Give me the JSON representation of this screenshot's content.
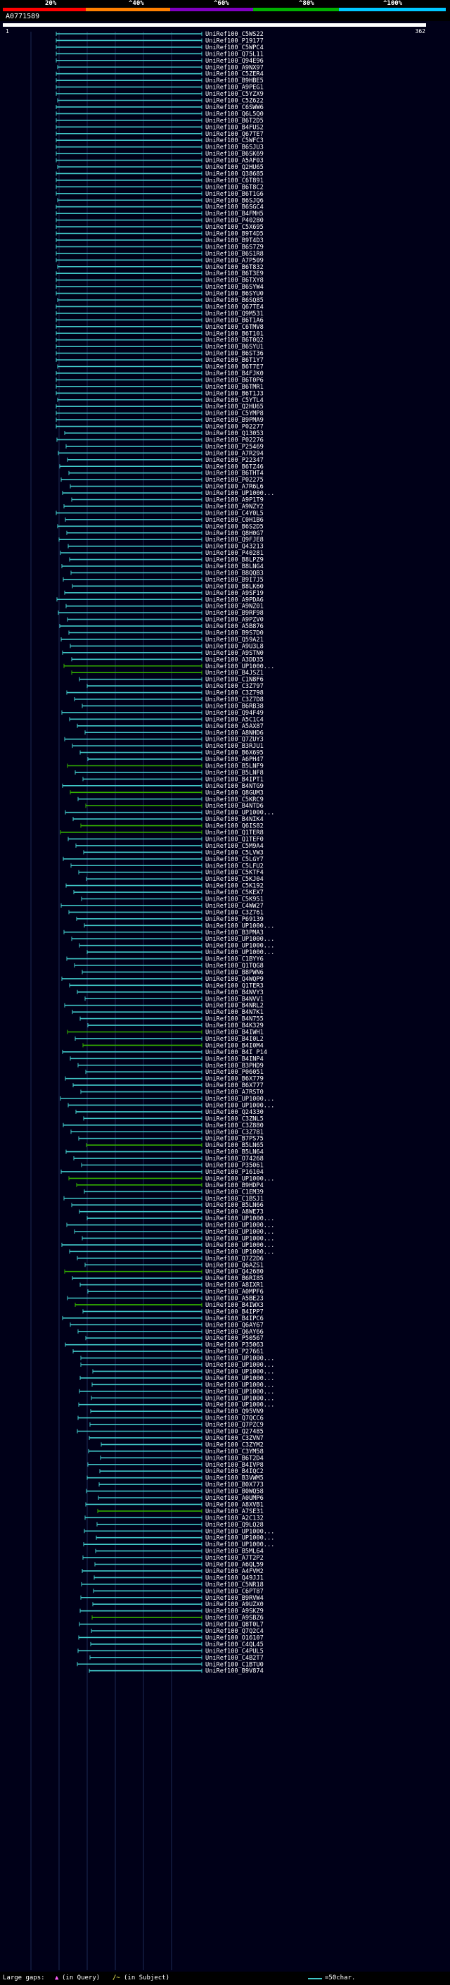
{
  "scale": {
    "labels": [
      "20%",
      "^40%",
      "^60%",
      "^80%",
      "^100%"
    ],
    "colors": [
      "#ff0000",
      "#ff8000",
      "#8000c0",
      "#00b000",
      "#00c8ff"
    ]
  },
  "query": {
    "id": "A0771589",
    "start": "1",
    "end": "362",
    "length": 362
  },
  "hits": [
    "UniRef100_C5WS22",
    "UniRef100_P19177",
    "UniRef100_C5WPC4",
    "UniRef100_Q75L11",
    "UniRef100_Q94E96",
    "UniRef100_A9NX97",
    "UniRef100_C5ZER4",
    "UniRef100_B9HBE5",
    "UniRef100_A9PEG1",
    "UniRef100_C5YZX9",
    "UniRef100_C5Z622",
    "UniRef100_C6SWW6",
    "UniRef100_Q6L5Q0",
    "UniRef100_B6T2D5",
    "UniRef100_B4FUS2",
    "UniRef100_Q67TE7",
    "UniRef100_C5WFC3",
    "UniRef100_B6SJU3",
    "UniRef100_B6SK69",
    "UniRef100_A5AF03",
    "UniRef100_Q2HU65",
    "UniRef100_Q38685",
    "UniRef100_C6T891",
    "UniRef100_B6T8C2",
    "UniRef100_B6T1G6",
    "UniRef100_B6SJQ6",
    "UniRef100_B6SGC4",
    "UniRef100_B4FMH5",
    "UniRef100_P40280",
    "UniRef100_C5X695",
    "UniRef100_B9T4D5",
    "UniRef100_B9T4D3",
    "UniRef100_B6S7Z9",
    "UniRef100_B6S1R8",
    "UniRef100_A7P509",
    "UniRef100_B6T832",
    "UniRef100_B6T3E9",
    "UniRef100_B6TXY8",
    "UniRef100_B6SYW4",
    "UniRef100_B6SYU0",
    "UniRef100_B6SQ85",
    "UniRef100_Q67TE4",
    "UniRef100_Q9M531",
    "UniRef100_B6T1A6",
    "UniRef100_C6TMV8",
    "UniRef100_B6T101",
    "UniRef100_B6T0Q2",
    "UniRef100_B6SYU1",
    "UniRef100_B6ST36",
    "UniRef100_B6T1Y7",
    "UniRef100_B6T7E7",
    "UniRef100_B4FJK0",
    "UniRef100_B6T0P6",
    "UniRef100_B6TMR1",
    "UniRef100_B6T1J3",
    "UniRef100_C5YTL4",
    "UniRef100_Q2HU65",
    "UniRef100_C5YMP8",
    "UniRef100_B9PMA9",
    "UniRef100_P02277",
    "UniRef100_Q13053",
    "UniRef100_P02276",
    "UniRef100_P25469",
    "UniRef100_A7R294",
    "UniRef100_P22347",
    "UniRef100_B6TZ46",
    "UniRef100_B6THT4",
    "UniRef100_P02275",
    "UniRef100_A7R6L6",
    "UniRef100_UP1000...",
    "UniRef100_A9P1T9",
    "UniRef100_A9NZY2",
    "UniRef100_C4Y0L5",
    "UniRef100_C0H1B6",
    "UniRef100_B6S2D5",
    "UniRef100_Q8H0G7",
    "UniRef100_Q9FJE8",
    "UniRef100_Q43213",
    "UniRef100_P40281",
    "UniRef100_B8LPZ9",
    "UniRef100_B8LNG4",
    "UniRef100_B8QQB3",
    "UniRef100_B9I7J5",
    "UniRef100_B8LK60",
    "UniRef100_A9SF19",
    "UniRef100_A9PDA6",
    "UniRef100_A9NZ01",
    "UniRef100_B9RF98",
    "UniRef100_A9PZV0",
    "UniRef100_A5B876",
    "UniRef100_B9S7D0",
    "UniRef100_Q59A21",
    "UniRef100_A9U3L8",
    "UniRef100_A9STN0",
    "UniRef100_A3DD35",
    "UniRef100_UP1000...",
    "UniRef100_B4JSZ1",
    "UniRef100_C1N8F6",
    "UniRef100_C3Z797",
    "UniRef100_C3Z798",
    "UniRef100_C3Z7D8",
    "UniRef100_B6RB38",
    "UniRef100_Q94F49",
    "UniRef100_A5C1C4",
    "UniRef100_A5AX87",
    "UniRef100_A8NHD6",
    "UniRef100_Q7ZUY3",
    "UniRef100_B3RJU1",
    "UniRef100_B6X695",
    "UniRef100_A6PH47",
    "UniRef100_B5LNF9",
    "UniRef100_B5LNF8",
    "UniRef100_B4IPT1",
    "UniRef100_B4NTG9",
    "UniRef100_Q8GUM3",
    "UniRef100_C5KRC9",
    "UniRef100_B4NTD6",
    "UniRef100_UP1000...",
    "UniRef100_B4NIK4",
    "UniRef100_Q6IS82",
    "UniRef100_Q1TER8",
    "UniRef100_Q1TEF0",
    "UniRef100_C5M9A4",
    "UniRef100_C5LVW3",
    "UniRef100_C5LGY7",
    "UniRef100_C5LFU2",
    "UniRef100_C5KTF4",
    "UniRef100_C5KJ04",
    "UniRef100_C5K192",
    "UniRef100_C5KEX7",
    "UniRef100_C5K951",
    "UniRef100_C4WW27",
    "UniRef100_C3Z761",
    "UniRef100_P69139",
    "UniRef100_UP1000...",
    "UniRef100_B3PMA3",
    "UniRef100_UP1000...",
    "UniRef100_UP1000...",
    "UniRef100_UP1000...",
    "UniRef100_C1BYY6",
    "UniRef100_Q1TQG8",
    "UniRef100_B8PWN6",
    "UniRef100_Q4WQP9",
    "UniRef100_Q1TER3",
    "UniRef100_B4NVY3",
    "UniRef100_B4NVV1",
    "UniRef100_B4NRL2",
    "UniRef100_B4N7K1",
    "UniRef100_B4N755",
    "UniRef100_B4K329",
    "UniRef100_B4IWH1",
    "UniRef100_B4I0L2",
    "UniRef100_B4I0M4",
    "UniRef100_B4I P14",
    "UniRef100_B4INP4",
    "UniRef100_B3PHD9",
    "UniRef100_P06051",
    "UniRef100_B6X779",
    "UniRef100_B6X777",
    "UniRef100_A7RST0",
    "UniRef100_UP1000...",
    "UniRef100_UP1000...",
    "UniRef100_Q24330",
    "UniRef100_C3ZNL5",
    "UniRef100_C3Z880",
    "UniRef100_C3Z781",
    "UniRef100_B7PS75",
    "UniRef100_B5LN65",
    "UniRef100_B5LN64",
    "UniRef100_O74268",
    "UniRef100_P35061",
    "UniRef100_P16104",
    "UniRef100_UP1000...",
    "UniRef100_B9HDP4",
    "UniRef100_C1EM39",
    "UniRef100_C1BSJ1",
    "UniRef100_B5LN66",
    "UniRef100_A8WE73",
    "UniRef100_UP1000...",
    "UniRef100_UP1000...",
    "UniRef100_UP1000...",
    "UniRef100_UP1000...",
    "UniRef100_UP1000...",
    "UniRef100_UP1000...",
    "UniRef100_Q7Z2D6",
    "UniRef100_Q6AZS1",
    "UniRef100_Q42680",
    "UniRef100_B6RI85",
    "UniRef100_A8IXR1",
    "UniRef100_A0MPF6",
    "UniRef100_A5BE23",
    "UniRef100_B4IWX3",
    "UniRef100_B4IPP7",
    "UniRef100_B4IPC6",
    "UniRef100_Q6AY67",
    "UniRef100_Q6AY66",
    "UniRef100_P50567",
    "UniRef100_P35063",
    "UniRef100_P27661",
    "UniRef100_UP1000...",
    "UniRef100_UP1000...",
    "UniRef100_UP1000...",
    "UniRef100_UP1000...",
    "UniRef100_UP1000...",
    "UniRef100_UP1000...",
    "UniRef100_UP1000...",
    "UniRef100_UP1000...",
    "UniRef100_Q95VN9",
    "UniRef100_Q7QCC6",
    "UniRef100_Q7PZC9",
    "UniRef100_Q27485",
    "UniRef100_C3ZVN7",
    "UniRef100_C3ZYM2",
    "UniRef100_C3YM58",
    "UniRef100_B6T2D4",
    "UniRef100_B4IVP8",
    "UniRef100_B4IQC2",
    "UniRef100_B3VWM5",
    "UniRef100_B0X773",
    "UniRef100_B0WQ58",
    "UniRef100_A0UMP6",
    "UniRef100_A8XVB1",
    "UniRef100_A7SE31",
    "UniRef100_A2C132",
    "UniRef100_Q9LQ28",
    "UniRef100_UP1000...",
    "UniRef100_UP1000...",
    "UniRef100_UP1000...",
    "UniRef100_B5ML64",
    "UniRef100_A7T2P2",
    "UniRef100_A6QL59",
    "UniRef100_A4FVM2",
    "UniRef100_Q49JJ1",
    "UniRef100_C5NR18",
    "UniRef100_C6PT87",
    "UniRef100_B9RVW4",
    "UniRef100_A9UZX0",
    "UniRef100_A9SKZ9",
    "UniRef100_A9SBZ6",
    "UniRef100_Q8T0L7",
    "UniRef100_Q7Q2C4",
    "UniRef100_O16107",
    "UniRef100_C4QL45",
    "UniRef100_C4PUL5",
    "UniRef100_C4B2T7",
    "UniRef100_C1BTU0",
    "UniRef100_B9V874"
  ],
  "green_hits": [
    95,
    96,
    110,
    114,
    116,
    119,
    120,
    150,
    152,
    167,
    172,
    173,
    186,
    191,
    222,
    238
  ],
  "legend": {
    "gaps_label": "Large gaps:",
    "query_marker": "▲",
    "query_gap_text": "(in Query)",
    "subject_marker": "/~",
    "subject_gap_text": "(in Subject)",
    "scale_text": "=50char."
  },
  "colors": {
    "identity_high": "#40c8c8",
    "identity_mid": "#33b000",
    "background": "#000018",
    "gridline": "#1c2a55"
  }
}
